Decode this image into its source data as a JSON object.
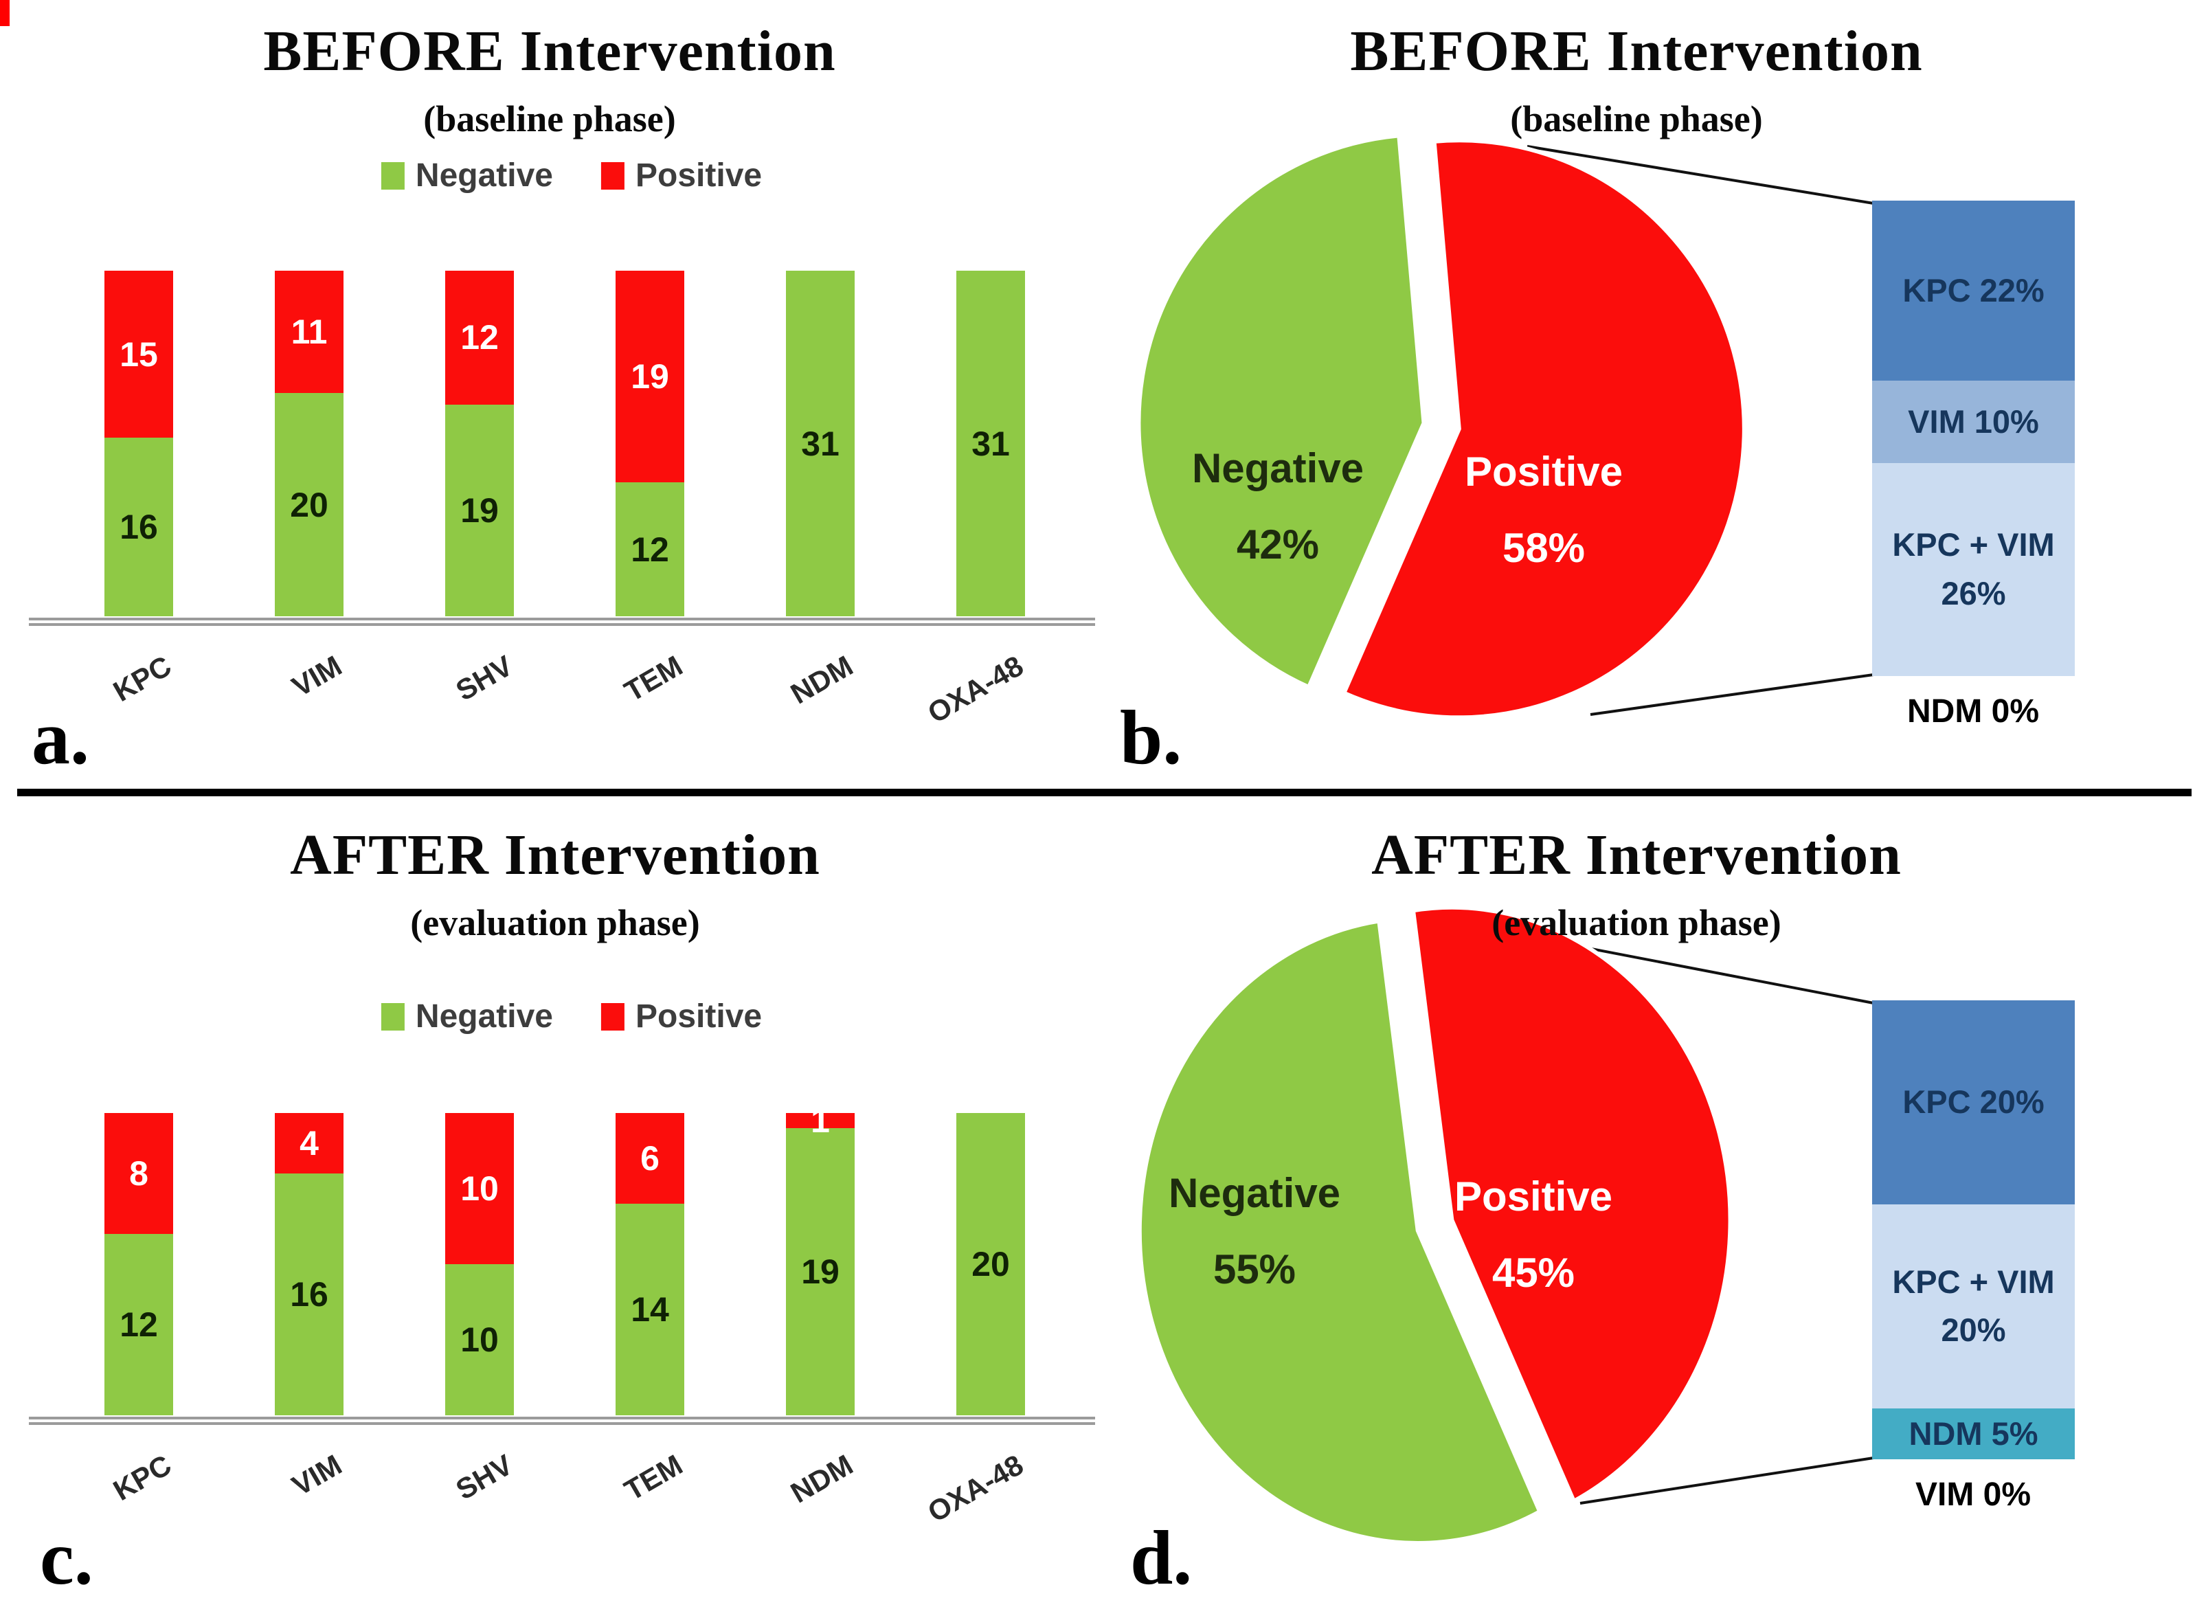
{
  "figure": {
    "panel_letters": [
      "a.",
      "b.",
      "c.",
      "d."
    ],
    "divider_color": "#000000",
    "baseline_color": "#9b9b9b"
  },
  "colors": {
    "negative_green": "#8FC945",
    "positive_red": "#FB0D0C",
    "kpc_blue": "#4E81BD",
    "vim_blue": "#97B5DA",
    "kpc_vim_blue": "#CBDCF1",
    "ndm_teal": "#43ACC5",
    "breakdown_text": "#16365C"
  },
  "chart_data": [
    {
      "panel": "a",
      "letter": "a.",
      "type": "bar",
      "stacked": true,
      "title": "BEFORE Intervention",
      "subtitle": "(baseline phase)",
      "legend_position": "top",
      "categories": [
        "KPC",
        "VIM",
        "SHV",
        "TEM",
        "NDM",
        "OXA-48"
      ],
      "series": [
        {
          "name": "Negative",
          "color": "#8FC945",
          "values": [
            16,
            20,
            19,
            12,
            31,
            31
          ]
        },
        {
          "name": "Positive",
          "color": "#FB0D0C",
          "values": [
            15,
            11,
            12,
            19,
            0,
            0
          ]
        }
      ],
      "value_labels": true,
      "ylim": [
        0,
        31
      ],
      "grid": false
    },
    {
      "panel": "b",
      "letter": "b.",
      "type": "pie",
      "title": "BEFORE Intervention",
      "subtitle": "(baseline phase)",
      "slices": [
        {
          "label": "Negative",
          "pct": 42,
          "color": "#8FC945",
          "text_color": "#1d2c0e"
        },
        {
          "label": "Positive",
          "pct": 58,
          "color": "#FB0D0C",
          "text_color": "#ffffff"
        }
      ],
      "breakdown_of": "Positive",
      "breakdown": [
        {
          "label": "KPC",
          "pct": 22,
          "color": "#4E81BD"
        },
        {
          "label": "VIM",
          "pct": 10,
          "color": "#97B5DA"
        },
        {
          "label": "KPC + VIM",
          "pct": 26,
          "color": "#CBDCF1"
        },
        {
          "label": "NDM",
          "pct": 0,
          "color": null
        }
      ]
    },
    {
      "panel": "c",
      "letter": "c.",
      "type": "bar",
      "stacked": true,
      "title": "AFTER Intervention",
      "subtitle": "(evaluation phase)",
      "legend_position": "top",
      "categories": [
        "KPC",
        "VIM",
        "SHV",
        "TEM",
        "NDM",
        "OXA-48"
      ],
      "series": [
        {
          "name": "Negative",
          "color": "#8FC945",
          "values": [
            12,
            16,
            10,
            14,
            19,
            20
          ]
        },
        {
          "name": "Positive",
          "color": "#FB0D0C",
          "values": [
            8,
            4,
            10,
            6,
            1,
            0
          ]
        }
      ],
      "value_labels": true,
      "ylim": [
        0,
        20
      ],
      "grid": false
    },
    {
      "panel": "d",
      "letter": "d.",
      "type": "pie",
      "title": "AFTER Intervention",
      "subtitle": "(evaluation phase)",
      "slices": [
        {
          "label": "Negative",
          "pct": 55,
          "color": "#8FC945",
          "text_color": "#1d2c0e"
        },
        {
          "label": "Positive",
          "pct": 45,
          "color": "#FB0D0C",
          "text_color": "#ffffff"
        }
      ],
      "breakdown_of": "Positive",
      "breakdown": [
        {
          "label": "KPC",
          "pct": 20,
          "color": "#4E81BD"
        },
        {
          "label": "KPC + VIM",
          "pct": 20,
          "color": "#CBDCF1"
        },
        {
          "label": "NDM",
          "pct": 5,
          "color": "#43ACC5"
        },
        {
          "label": "VIM",
          "pct": 0,
          "color": null
        }
      ]
    }
  ]
}
